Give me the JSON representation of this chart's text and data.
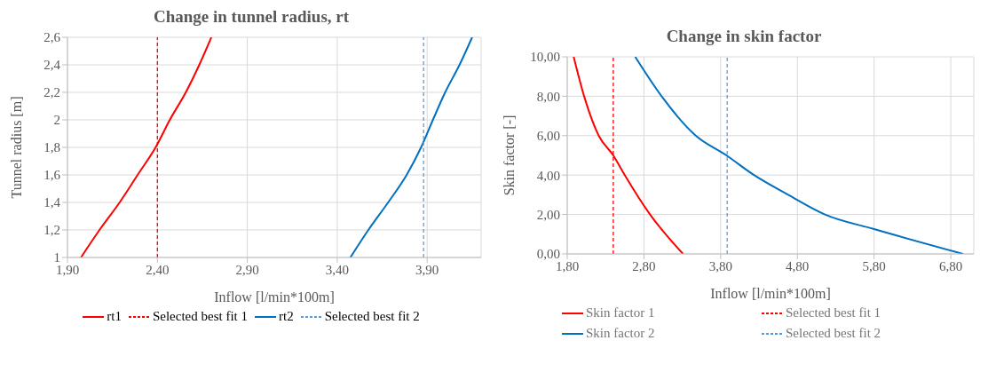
{
  "chart_data": [
    {
      "type": "line",
      "title": "Change in tunnel radius, rt",
      "xlabel": "Inflow [l/min*100m]",
      "ylabel": "Tunnel radius [m]",
      "xlim": [
        1.9,
        4.2
      ],
      "ylim": [
        1,
        2.6
      ],
      "xticks": [
        {
          "value": 1.9,
          "label": "1,90"
        },
        {
          "value": 2.4,
          "label": "2,40"
        },
        {
          "value": 2.9,
          "label": "2,90"
        },
        {
          "value": 3.4,
          "label": "3,40"
        },
        {
          "value": 3.9,
          "label": "3,90"
        }
      ],
      "yticks": [
        1,
        {
          "value": 1.2,
          "label": "1,2"
        },
        {
          "value": 1.4,
          "label": "1,4"
        },
        {
          "value": 1.6,
          "label": "1,6"
        },
        {
          "value": 1.8,
          "label": "1,8"
        },
        2,
        {
          "value": 2.2,
          "label": "2,2"
        },
        {
          "value": 2.4,
          "label": "2,4"
        },
        {
          "value": 2.6,
          "label": "2,6"
        }
      ],
      "grid": true,
      "legend": "bottom",
      "marker": "none",
      "series": [
        {
          "name": "rt1",
          "color": "#ff0000",
          "line_style": "solid",
          "x": [
            1.975,
            2.078,
            2.19,
            2.29,
            2.39,
            2.469,
            2.558,
            2.633,
            2.7
          ],
          "values": [
            1,
            1.2,
            1.4,
            1.6,
            1.8,
            2,
            2.2,
            2.4,
            2.6
          ]
        },
        {
          "name": "Selected best fit 1",
          "color": "#ff0000",
          "line_style": "dashed",
          "x": [
            2.4,
            2.4
          ],
          "values": [
            1,
            2.6
          ]
        },
        {
          "name": "rt2",
          "color": "#0070c0",
          "line_style": "solid",
          "x": [
            3.473,
            3.573,
            3.683,
            3.786,
            3.866,
            3.932,
            4.0,
            4.08,
            4.15
          ],
          "values": [
            1,
            1.2,
            1.4,
            1.6,
            1.8,
            2,
            2.2,
            2.4,
            2.6
          ]
        },
        {
          "name": "Selected best fit 2",
          "color": "#5b9bd5",
          "line_style": "dashed",
          "x": [
            3.88,
            3.88
          ],
          "values": [
            1,
            2.6
          ]
        }
      ]
    },
    {
      "type": "line",
      "title": "Change in skin factor",
      "xlabel": "Inflow [l/min*100m]",
      "ylabel": "Skin factor [-]",
      "xlim": [
        1.8,
        7.1
      ],
      "ylim": [
        0,
        10
      ],
      "xticks": [
        {
          "value": 1.8,
          "label": "1,80"
        },
        {
          "value": 2.8,
          "label": "2,80"
        },
        {
          "value": 3.8,
          "label": "3,80"
        },
        {
          "value": 4.8,
          "label": "4,80"
        },
        {
          "value": 5.8,
          "label": "5,80"
        },
        {
          "value": 6.8,
          "label": "6,80"
        }
      ],
      "yticks": [
        {
          "value": 0,
          "label": "0,00"
        },
        {
          "value": 2,
          "label": "2,00"
        },
        {
          "value": 4,
          "label": "4,00"
        },
        {
          "value": 6,
          "label": "6,00"
        },
        {
          "value": 8,
          "label": "8,00"
        },
        {
          "value": 10,
          "label": "10,00"
        }
      ],
      "grid": true,
      "legend": "bottom",
      "marker": "none",
      "series": [
        {
          "name": "Skin factor 1",
          "color": "#ff0000",
          "line_style": "solid",
          "x": [
            1.884,
            2.02,
            2.21,
            2.4,
            2.55,
            2.88,
            3.31
          ],
          "values": [
            10,
            8,
            6,
            5,
            4,
            2,
            0
          ]
        },
        {
          "name": "Selected best fit 1",
          "color": "#ff0000",
          "line_style": "dashed",
          "x": [
            2.4,
            2.4
          ],
          "values": [
            0,
            10
          ]
        },
        {
          "name": "Skin factor 2",
          "color": "#0070c0",
          "line_style": "solid",
          "x": [
            2.686,
            3.03,
            3.475,
            3.875,
            4.235,
            4.68,
            5.16,
            5.8,
            6.96
          ],
          "values": [
            10,
            8,
            6,
            5,
            4,
            3,
            2,
            1.26,
            0
          ]
        },
        {
          "name": "Selected best fit 2",
          "color": "#5b9bd5",
          "line_style": "dashed",
          "x": [
            3.885,
            3.885
          ],
          "values": [
            0,
            10
          ]
        }
      ]
    }
  ]
}
